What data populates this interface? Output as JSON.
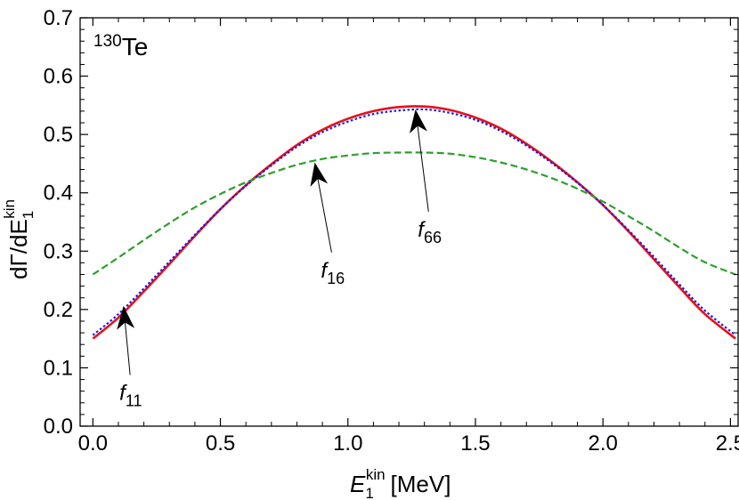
{
  "chart_data": {
    "type": "line",
    "title": "",
    "panel_label": {
      "superscript": "130",
      "main": "Te"
    },
    "xlabel": {
      "main": "E",
      "sub": "1",
      "sup": "kin",
      "unit": "[MeV]"
    },
    "ylabel": {
      "main": "dΓ/dE",
      "sub": "1",
      "sup": "kin"
    },
    "xlim": [
      -0.05,
      2.53
    ],
    "ylim": [
      0.0,
      0.7
    ],
    "xticks": [
      0.0,
      0.5,
      1.0,
      1.5,
      2.0,
      2.5
    ],
    "xtick_labels": [
      "0.0",
      "0.5",
      "1.0",
      "1.5",
      "2.0",
      "2.5"
    ],
    "yticks": [
      0.0,
      0.1,
      0.2,
      0.3,
      0.4,
      0.5,
      0.6,
      0.7
    ],
    "ytick_labels": [
      "0.0",
      "0.1",
      "0.2",
      "0.3",
      "0.4",
      "0.5",
      "0.6",
      "0.7"
    ],
    "grid": false,
    "series": [
      {
        "name": "f11",
        "color": "#e8101a",
        "style": "solid",
        "x": [
          0.0,
          0.1,
          0.2,
          0.3,
          0.4,
          0.5,
          0.6,
          0.7,
          0.8,
          0.9,
          1.0,
          1.1,
          1.2,
          1.3,
          1.4,
          1.5,
          1.6,
          1.7,
          1.8,
          1.9,
          2.0,
          2.1,
          2.2,
          2.3,
          2.4,
          2.52
        ],
        "y": [
          0.15,
          0.186,
          0.231,
          0.278,
          0.326,
          0.372,
          0.413,
          0.449,
          0.482,
          0.508,
          0.527,
          0.54,
          0.547,
          0.548,
          0.542,
          0.529,
          0.51,
          0.484,
          0.453,
          0.418,
          0.379,
          0.334,
          0.286,
          0.238,
          0.192,
          0.15
        ]
      },
      {
        "name": "f66",
        "color": "#1a1ae8",
        "style": "dotted",
        "x": [
          0.0,
          0.1,
          0.2,
          0.3,
          0.4,
          0.5,
          0.6,
          0.7,
          0.8,
          0.9,
          1.0,
          1.1,
          1.2,
          1.3,
          1.4,
          1.5,
          1.6,
          1.7,
          1.8,
          1.9,
          2.0,
          2.1,
          2.2,
          2.3,
          2.4,
          2.52
        ],
        "y": [
          0.156,
          0.192,
          0.236,
          0.282,
          0.328,
          0.372,
          0.412,
          0.447,
          0.479,
          0.504,
          0.522,
          0.535,
          0.541,
          0.543,
          0.537,
          0.525,
          0.506,
          0.481,
          0.451,
          0.417,
          0.379,
          0.336,
          0.29,
          0.243,
          0.198,
          0.156
        ]
      },
      {
        "name": "f16",
        "color": "#2ca02c",
        "style": "dashed",
        "x": [
          0.0,
          0.1,
          0.2,
          0.3,
          0.4,
          0.5,
          0.6,
          0.7,
          0.8,
          0.9,
          1.0,
          1.1,
          1.2,
          1.3,
          1.4,
          1.5,
          1.6,
          1.7,
          1.8,
          1.9,
          2.0,
          2.1,
          2.2,
          2.3,
          2.4,
          2.52
        ],
        "y": [
          0.26,
          0.289,
          0.319,
          0.348,
          0.375,
          0.398,
          0.418,
          0.434,
          0.448,
          0.458,
          0.464,
          0.468,
          0.469,
          0.469,
          0.467,
          0.461,
          0.452,
          0.44,
          0.425,
          0.407,
          0.385,
          0.36,
          0.334,
          0.306,
          0.281,
          0.26
        ]
      }
    ],
    "annotations": [
      {
        "label_main": "f",
        "label_sub": "11",
        "text_x": 0.16,
        "text_y": 0.045,
        "tip_x": 0.12,
        "tip_y": 0.206
      },
      {
        "label_main": "f",
        "label_sub": "16",
        "text_x": 0.95,
        "text_y": 0.255,
        "tip_x": 0.87,
        "tip_y": 0.452
      },
      {
        "label_main": "f",
        "label_sub": "66",
        "text_x": 1.33,
        "text_y": 0.325,
        "tip_x": 1.265,
        "tip_y": 0.543
      }
    ]
  }
}
